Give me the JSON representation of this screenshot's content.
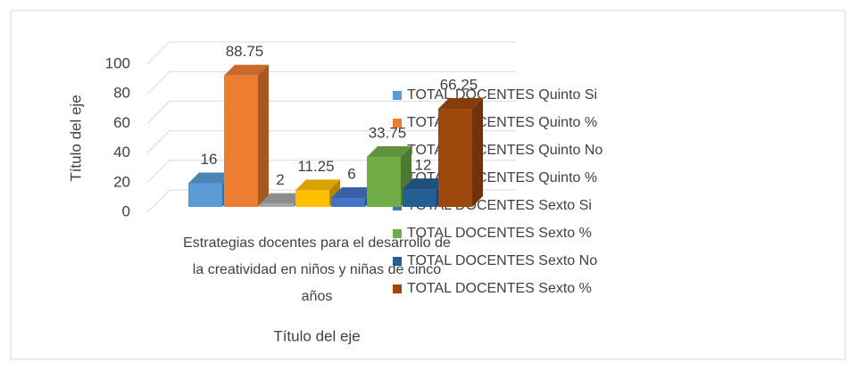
{
  "chart_data": {
    "type": "bar3d",
    "categories": [
      "Estrategias docentes para el desarrollo de la creatividad en niños y niñas de cinco años"
    ],
    "x_label": "Título del eje",
    "y_label": "Título del eje",
    "ylim": [
      0,
      100
    ],
    "yticks": [
      0,
      20,
      40,
      60,
      80,
      100
    ],
    "grid": true,
    "legend": "right",
    "series": [
      {
        "name": "TOTAL DOCENTES Quinto Si",
        "color": "#5b9bd5",
        "values": [
          16
        ]
      },
      {
        "name": "TOTAL DOCENTES Quinto %",
        "color": "#ed7d31",
        "values": [
          88.75
        ]
      },
      {
        "name": "TOTAL DOCENTES Quinto No",
        "color": "#a5a5a5",
        "values": [
          2
        ]
      },
      {
        "name": "TOTAL DOCENTES Quinto %",
        "color": "#ffc000",
        "values": [
          11.25
        ]
      },
      {
        "name": "TOTAL DOCENTES Sexto Si",
        "color": "#4472c4",
        "values": [
          6
        ]
      },
      {
        "name": "TOTAL DOCENTES Sexto %",
        "color": "#70ad47",
        "values": [
          33.75
        ]
      },
      {
        "name": "TOTAL DOCENTES Sexto No",
        "color": "#255e91",
        "values": [
          12
        ]
      },
      {
        "name": "TOTAL DOCENTES Sexto %",
        "color": "#9e480e",
        "values": [
          66.25
        ]
      }
    ]
  }
}
